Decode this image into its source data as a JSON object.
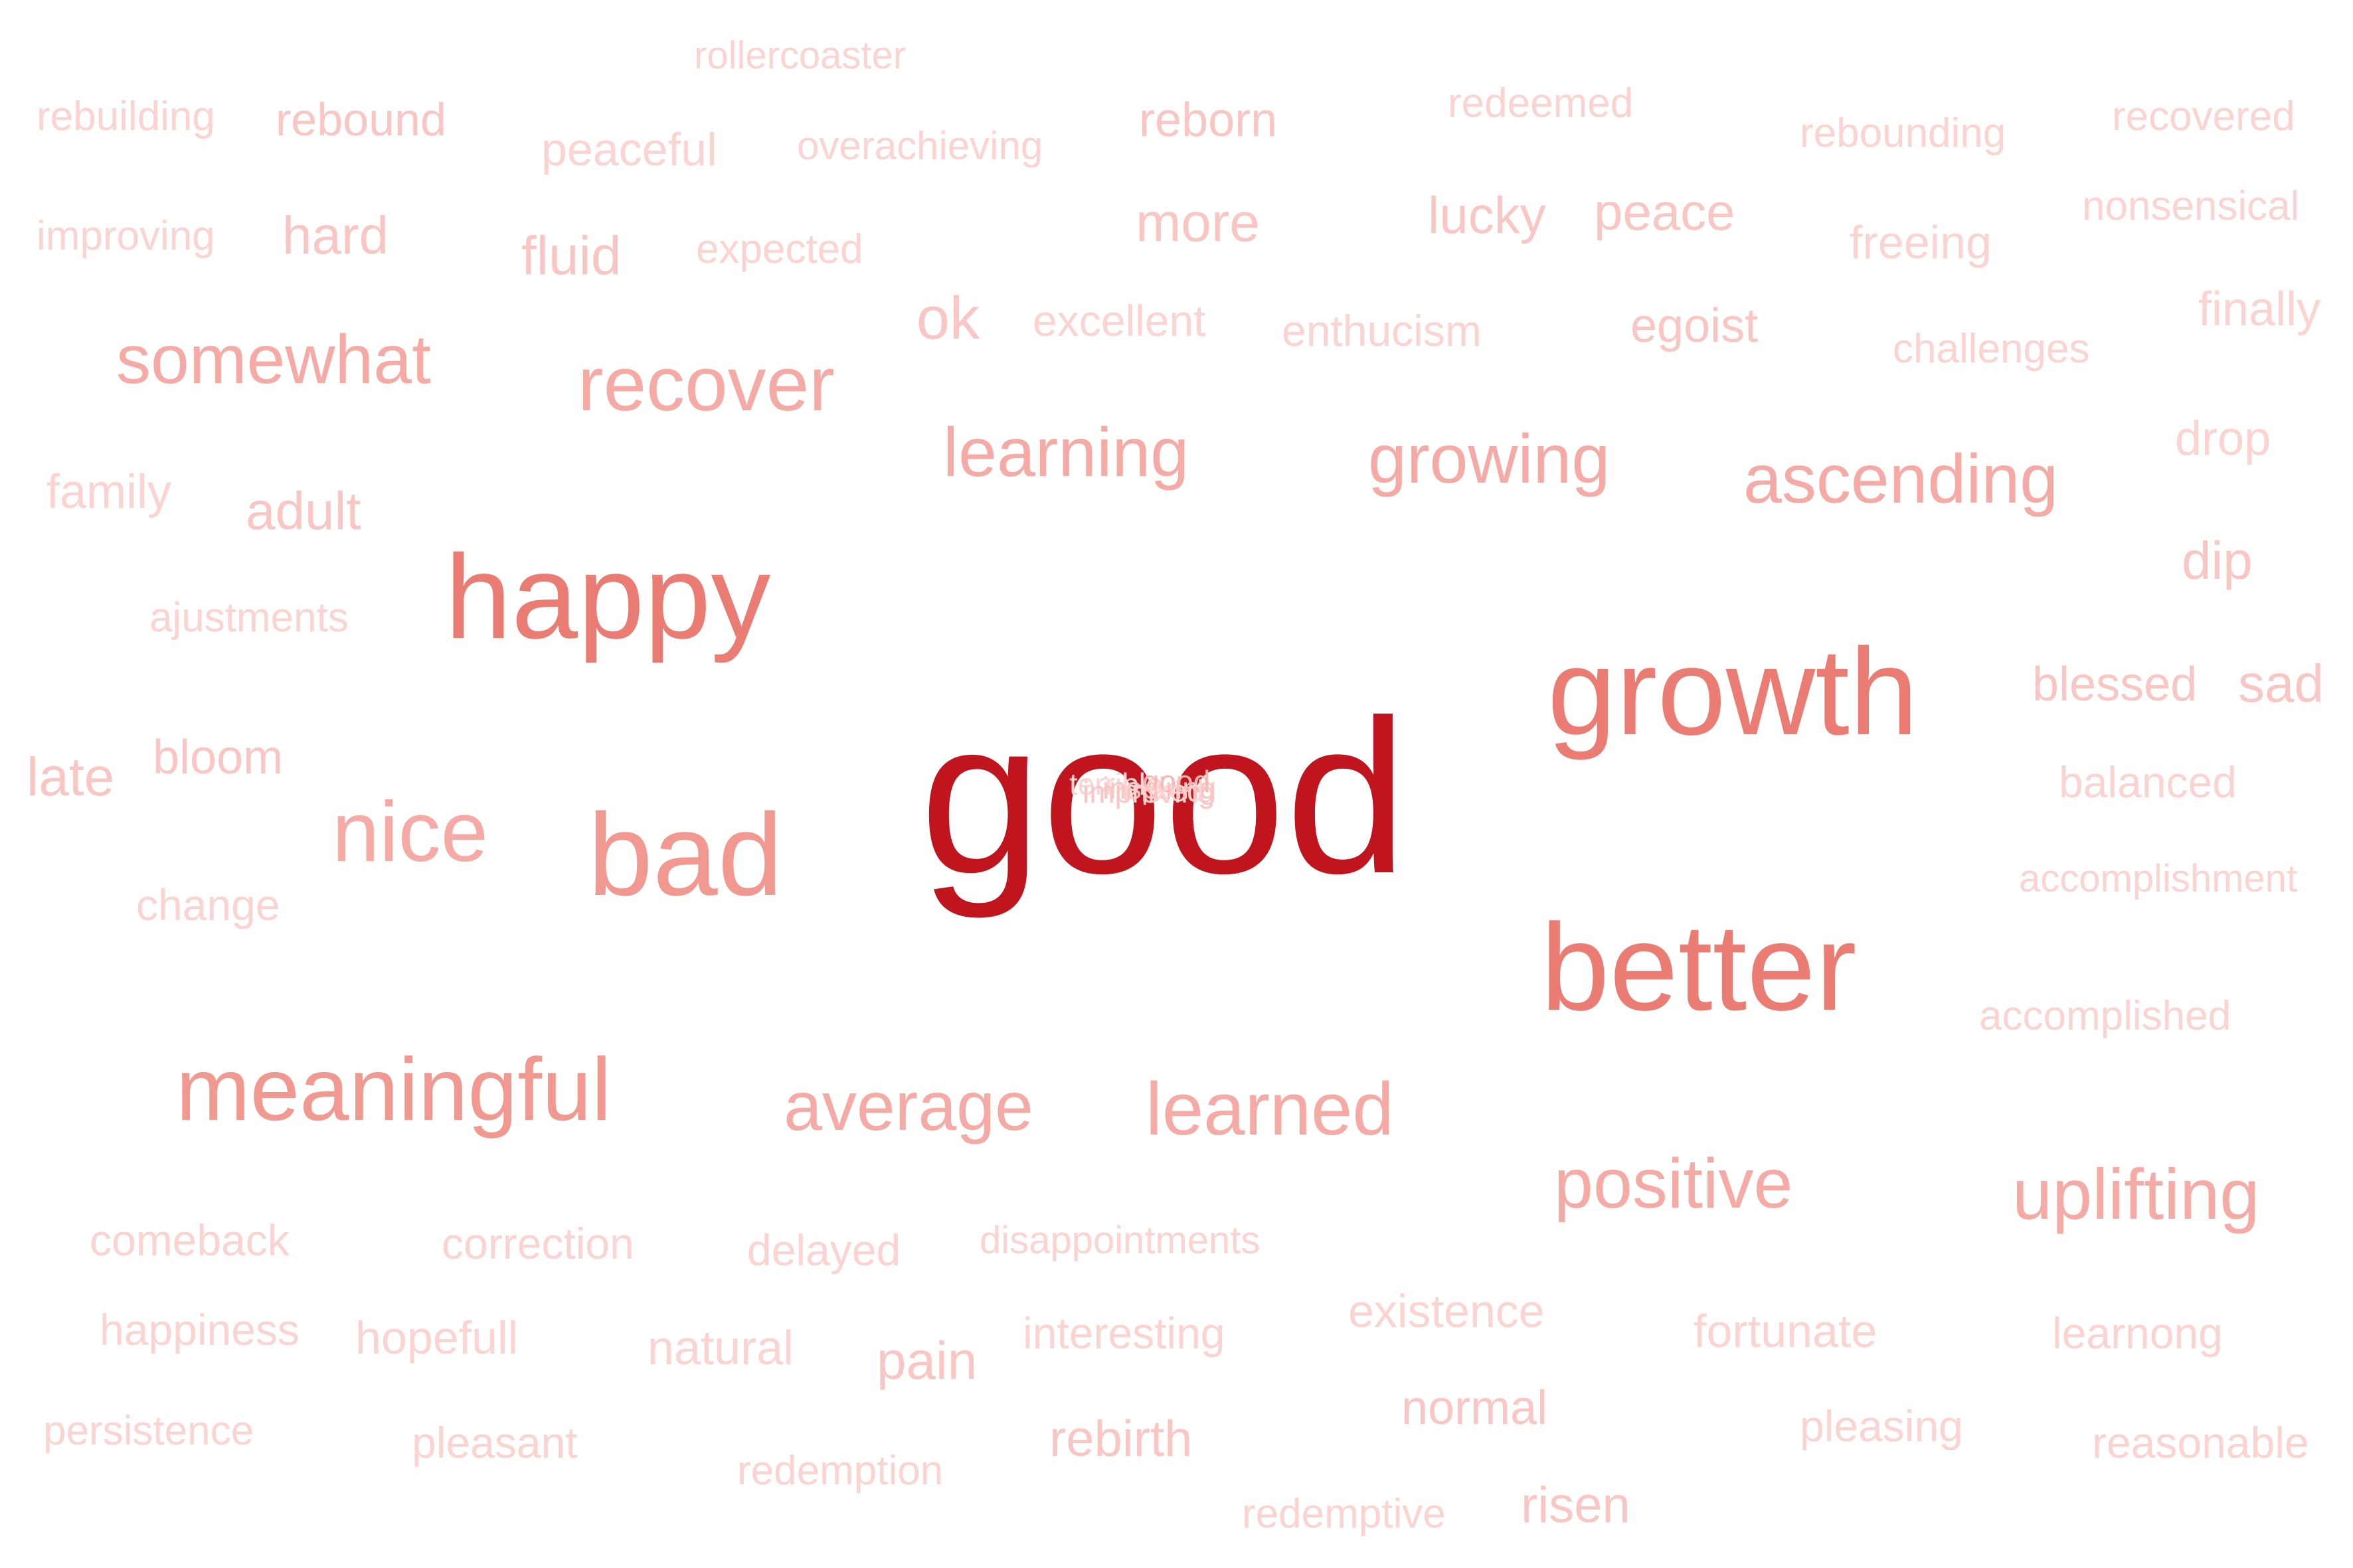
{
  "cloud": {
    "words": [
      {
        "text": "rollercoaster",
        "color": "#fbd3d1"
      },
      {
        "text": "rebuilding",
        "color": "#fbd3d1"
      },
      {
        "text": "rebound",
        "color": "#f9c6c3"
      },
      {
        "text": "peaceful",
        "color": "#fbd3d1"
      },
      {
        "text": "overachieving",
        "color": "#fbd3d1"
      },
      {
        "text": "reborn",
        "color": "#f9c6c3"
      },
      {
        "text": "redeemed",
        "color": "#fbd3d1"
      },
      {
        "text": "rebounding",
        "color": "#fbd3d1"
      },
      {
        "text": "recovered",
        "color": "#fbd3d1"
      },
      {
        "text": "improving",
        "color": "#fbd3d1"
      },
      {
        "text": "hard",
        "color": "#f9c6c3"
      },
      {
        "text": "fluid",
        "color": "#f9c6c3"
      },
      {
        "text": "expected",
        "color": "#fbd3d1"
      },
      {
        "text": "more",
        "color": "#f9c6c3"
      },
      {
        "text": "lucky",
        "color": "#f9c6c3"
      },
      {
        "text": "peace",
        "color": "#f9c6c3"
      },
      {
        "text": "freeing",
        "color": "#fbd3d1"
      },
      {
        "text": "nonsensical",
        "color": "#fbd3d1"
      },
      {
        "text": "somewhat",
        "color": "#f5aaa5"
      },
      {
        "text": "ok",
        "color": "#f9c6c3"
      },
      {
        "text": "excellent",
        "color": "#fbd3d1"
      },
      {
        "text": "enthucism",
        "color": "#fbd3d1"
      },
      {
        "text": "egoist",
        "color": "#f9c6c3"
      },
      {
        "text": "challenges",
        "color": "#fbd3d1"
      },
      {
        "text": "finally",
        "color": "#fbd3d1"
      },
      {
        "text": "recover",
        "color": "#f5aaa5"
      },
      {
        "text": "learning",
        "color": "#f5aaa5"
      },
      {
        "text": "growing",
        "color": "#f5aaa5"
      },
      {
        "text": "ascending",
        "color": "#f5aaa5"
      },
      {
        "text": "drop",
        "color": "#fbd3d1"
      },
      {
        "text": "family",
        "color": "#fbd3d1"
      },
      {
        "text": "adult",
        "color": "#f9c6c3"
      },
      {
        "text": "happy",
        "color": "#eb7c74"
      },
      {
        "text": "dip",
        "color": "#f9c6c3"
      },
      {
        "text": "ajustments",
        "color": "#fbd3d1"
      },
      {
        "text": "growth",
        "color": "#eb7c74"
      },
      {
        "text": "blessed",
        "color": "#f9c6c3"
      },
      {
        "text": "sad",
        "color": "#f9c6c3"
      },
      {
        "text": "late",
        "color": "#f9c6c3"
      },
      {
        "text": "bloom",
        "color": "#f9c6c3"
      },
      {
        "text": "good",
        "color": "#c0141e"
      },
      {
        "text": "balanced",
        "color": "#fbd3d1"
      },
      {
        "text": "nice",
        "color": "#f5aaa5"
      },
      {
        "text": "bad",
        "color": "#f19890"
      },
      {
        "text": "accomplishment",
        "color": "#fbd3d1"
      },
      {
        "text": "change",
        "color": "#fbd3d1"
      },
      {
        "text": "better",
        "color": "#eb7c74"
      },
      {
        "text": "accomplished",
        "color": "#fbd3d1"
      },
      {
        "text": "meaningful",
        "color": "#f19890"
      },
      {
        "text": "average",
        "color": "#f5aaa5"
      },
      {
        "text": "learned",
        "color": "#f5aaa5"
      },
      {
        "text": "positive",
        "color": "#f5aaa5"
      },
      {
        "text": "uplifting",
        "color": "#f5aaa5"
      },
      {
        "text": "comeback",
        "color": "#fbd3d1"
      },
      {
        "text": "correction",
        "color": "#fbd3d1"
      },
      {
        "text": "delayed",
        "color": "#fbd3d1"
      },
      {
        "text": "disappointments",
        "color": "#fbd3d1"
      },
      {
        "text": "existence",
        "color": "#fbd3d1"
      },
      {
        "text": "fortunate",
        "color": "#fbd3d1"
      },
      {
        "text": "learnong",
        "color": "#fbd3d1"
      },
      {
        "text": "happiness",
        "color": "#fbd3d1"
      },
      {
        "text": "hopefull",
        "color": "#fbd3d1"
      },
      {
        "text": "natural",
        "color": "#fbd3d1"
      },
      {
        "text": "pain",
        "color": "#f9c6c3"
      },
      {
        "text": "interesting",
        "color": "#fbd3d1"
      },
      {
        "text": "normal",
        "color": "#f9c6c3"
      },
      {
        "text": "pleasing",
        "color": "#fbd3d1"
      },
      {
        "text": "persistence",
        "color": "#fbd3d1"
      },
      {
        "text": "pleasant",
        "color": "#fbd3d1"
      },
      {
        "text": "redemption",
        "color": "#fbd3d1"
      },
      {
        "text": "rebirth",
        "color": "#f9c6c3"
      },
      {
        "text": "reasonable",
        "color": "#fbd3d1"
      },
      {
        "text": "redemptive",
        "color": "#fbd3d1"
      },
      {
        "text": "risen",
        "color": "#f9c6c3"
      }
    ]
  }
}
